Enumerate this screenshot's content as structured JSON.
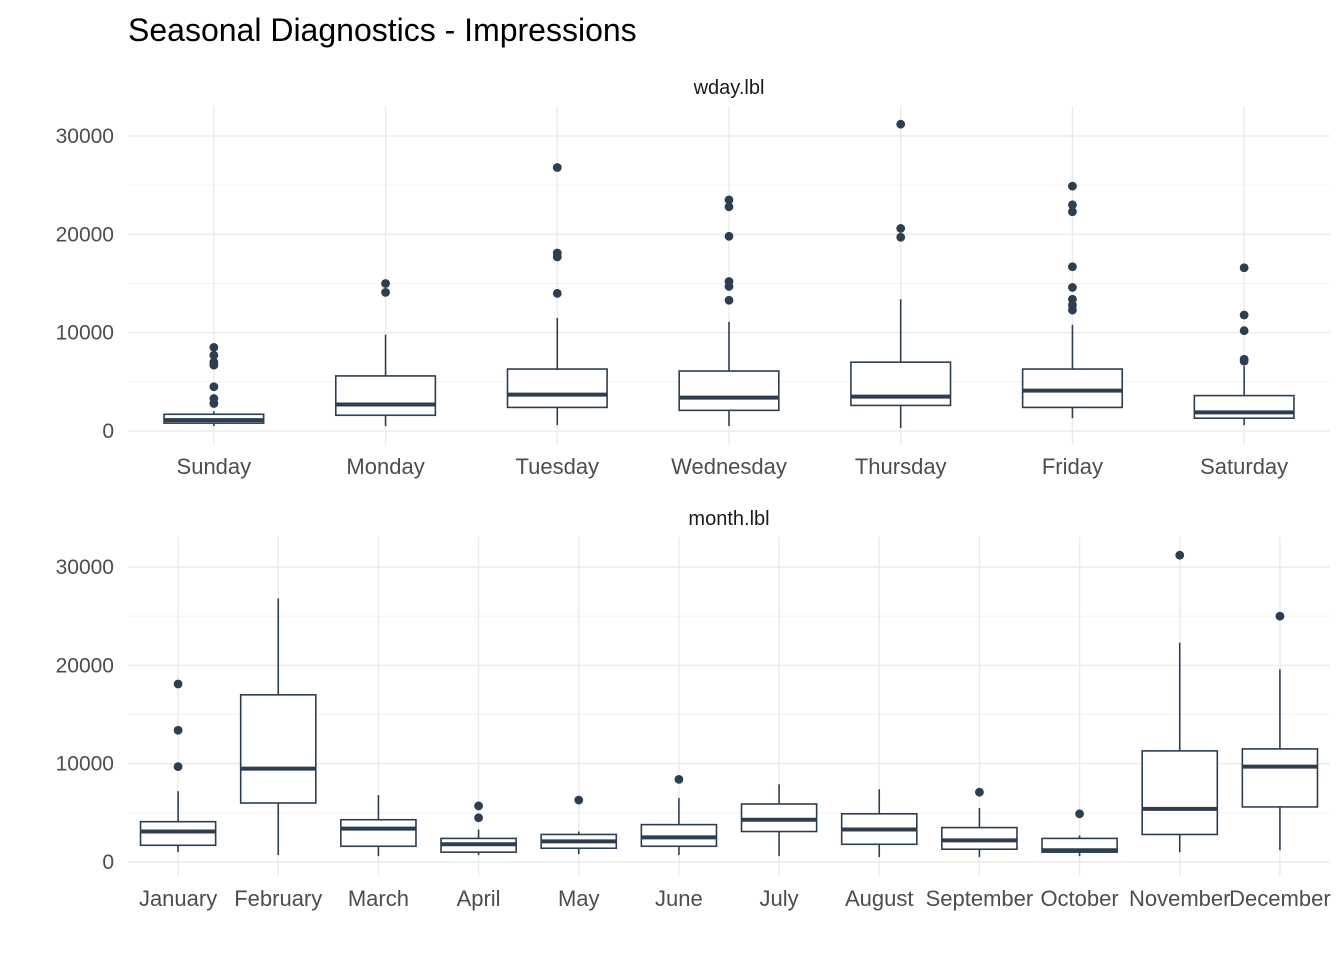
{
  "title": "Seasonal Diagnostics - Impressions",
  "colors": {
    "box": "#2c3e50",
    "grid": "#ebebeb",
    "background": "#ffffff"
  },
  "chart_data": [
    {
      "type": "boxplot",
      "facet": "wday.lbl",
      "ylim": [
        0,
        32000
      ],
      "yticks": [
        0,
        10000,
        20000,
        30000
      ],
      "grid": true,
      "categories": [
        "Sunday",
        "Monday",
        "Tuesday",
        "Wednesday",
        "Thursday",
        "Friday",
        "Saturday"
      ],
      "boxes": [
        {
          "min": 500,
          "q1": 800,
          "median": 1100,
          "q3": 1700,
          "max": 2000,
          "outliers": [
            2800,
            3300,
            4500,
            6700,
            7000,
            7700,
            8500
          ]
        },
        {
          "min": 500,
          "q1": 1600,
          "median": 2700,
          "q3": 5600,
          "max": 9800,
          "outliers": [
            14100,
            15000
          ]
        },
        {
          "min": 600,
          "q1": 2400,
          "median": 3700,
          "q3": 6300,
          "max": 11500,
          "outliers": [
            14000,
            17700,
            18100,
            26800
          ]
        },
        {
          "min": 500,
          "q1": 2100,
          "median": 3400,
          "q3": 6100,
          "max": 11100,
          "outliers": [
            13300,
            14700,
            15200,
            19800,
            22800,
            23500
          ]
        },
        {
          "min": 300,
          "q1": 2600,
          "median": 3500,
          "q3": 7000,
          "max": 13400,
          "outliers": [
            19700,
            20600,
            31200
          ]
        },
        {
          "min": 1300,
          "q1": 2400,
          "median": 4100,
          "q3": 6300,
          "max": 10800,
          "outliers": [
            12300,
            12800,
            13400,
            14600,
            16700,
            22300,
            23000,
            24900
          ]
        },
        {
          "min": 600,
          "q1": 1300,
          "median": 1900,
          "q3": 3600,
          "max": 6600,
          "outliers": [
            7100,
            7300,
            10200,
            11800,
            16600
          ]
        }
      ]
    },
    {
      "type": "boxplot",
      "facet": "month.lbl",
      "ylim": [
        0,
        32000
      ],
      "yticks": [
        0,
        10000,
        20000,
        30000
      ],
      "grid": true,
      "categories": [
        "January",
        "February",
        "March",
        "April",
        "May",
        "June",
        "July",
        "August",
        "September",
        "October",
        "November",
        "December"
      ],
      "boxes": [
        {
          "min": 1000,
          "q1": 1700,
          "median": 3100,
          "q3": 4100,
          "max": 7200,
          "outliers": [
            9700,
            13400,
            18100
          ]
        },
        {
          "min": 700,
          "q1": 6000,
          "median": 9500,
          "q3": 17000,
          "max": 26800,
          "outliers": []
        },
        {
          "min": 600,
          "q1": 1600,
          "median": 3400,
          "q3": 4300,
          "max": 6800,
          "outliers": []
        },
        {
          "min": 700,
          "q1": 1000,
          "median": 1800,
          "q3": 2400,
          "max": 3300,
          "outliers": [
            4500,
            5700
          ]
        },
        {
          "min": 800,
          "q1": 1400,
          "median": 2100,
          "q3": 2800,
          "max": 3100,
          "outliers": [
            6300
          ]
        },
        {
          "min": 700,
          "q1": 1600,
          "median": 2500,
          "q3": 3800,
          "max": 6500,
          "outliers": [
            8400
          ]
        },
        {
          "min": 600,
          "q1": 3100,
          "median": 4300,
          "q3": 5900,
          "max": 7900,
          "outliers": []
        },
        {
          "min": 500,
          "q1": 1800,
          "median": 3300,
          "q3": 4900,
          "max": 7400,
          "outliers": []
        },
        {
          "min": 500,
          "q1": 1300,
          "median": 2200,
          "q3": 3500,
          "max": 5500,
          "outliers": [
            7100
          ]
        },
        {
          "min": 600,
          "q1": 1000,
          "median": 1200,
          "q3": 2400,
          "max": 2700,
          "outliers": [
            4900
          ]
        },
        {
          "min": 1000,
          "q1": 2800,
          "median": 5400,
          "q3": 11300,
          "max": 22300,
          "outliers": [
            31200
          ]
        },
        {
          "min": 1200,
          "q1": 5600,
          "median": 9700,
          "q3": 11500,
          "max": 19600,
          "outliers": [
            25000
          ]
        }
      ]
    }
  ]
}
